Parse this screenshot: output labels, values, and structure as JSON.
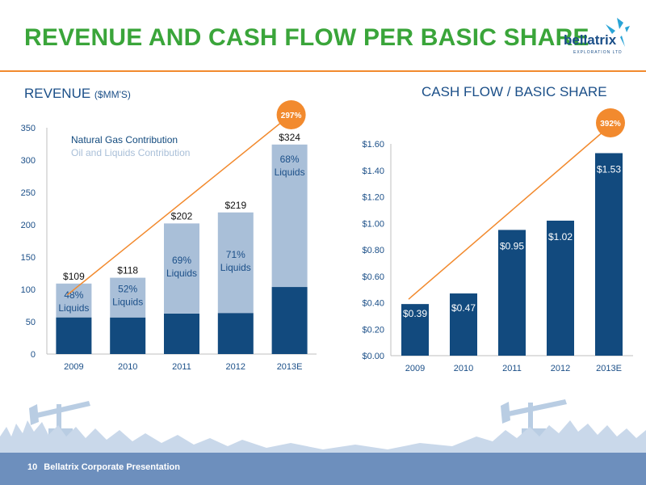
{
  "header": {
    "title": "REVENUE AND CASH FLOW PER BASIC SHARE"
  },
  "logo": {
    "name": "bellatrix",
    "tagline": "EXPLORATION LTD"
  },
  "revenue_section": {
    "title": "REVENUE",
    "unit": "($MM'S)"
  },
  "cashflow_section": {
    "title": "CASH FLOW / BASIC SHARE"
  },
  "footer": {
    "page_number": "10",
    "text": "Bellatrix Corporate Presentation"
  },
  "colors": {
    "dark_blue": "#124a7e",
    "light_blue": "#a9bfd8",
    "orange": "#f28a2e",
    "green": "#3aa53a",
    "text_blue": "#1b4f88",
    "footer_band": "#6d8fbd"
  },
  "chart_data": [
    {
      "type": "bar",
      "stacked": true,
      "categories": [
        "2009",
        "2010",
        "2011",
        "2012",
        "2013E"
      ],
      "series": [
        {
          "name": "Natural Gas Contribution",
          "values": [
            56.7,
            56.6,
            62.6,
            63.5,
            103.7
          ]
        },
        {
          "name": "Oil and Liquids Contribution",
          "values": [
            52.3,
            61.4,
            139.4,
            155.5,
            220.3
          ]
        }
      ],
      "totals": [
        "$109",
        "$118",
        "$202",
        "$219",
        "$324"
      ],
      "segment_labels": [
        [
          "48%",
          "Liquids"
        ],
        [
          "52%",
          "Liquids"
        ],
        [
          "69%",
          "Liquids"
        ],
        [
          "71%",
          "Liquids"
        ],
        [
          "68%",
          "Liquids"
        ]
      ],
      "y_ticks": [
        "0",
        "50",
        "100",
        "150",
        "200",
        "250",
        "300",
        "350"
      ],
      "ylim": [
        0,
        350
      ],
      "legend_position": "top-left",
      "trend_badge": "297%"
    },
    {
      "type": "bar",
      "categories": [
        "2009",
        "2010",
        "2011",
        "2012",
        "2013E"
      ],
      "values": [
        0.39,
        0.47,
        0.95,
        1.02,
        1.53
      ],
      "value_labels": [
        "$0.39",
        "$0.47",
        "$0.95",
        "$1.02",
        "$1.53"
      ],
      "y_ticks": [
        "$0.00",
        "$0.20",
        "$0.40",
        "$0.60",
        "$0.80",
        "$1.00",
        "$1.20",
        "$1.40",
        "$1.60"
      ],
      "ylim": [
        0,
        1.6
      ],
      "trend_badge": "392%"
    }
  ]
}
